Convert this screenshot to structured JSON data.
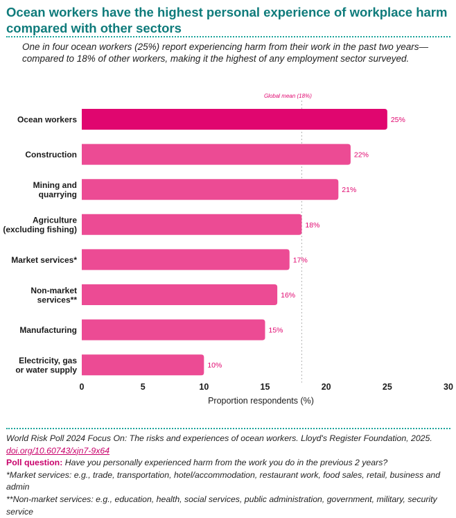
{
  "header": {
    "title": "Ocean workers have the highest personal experience of workplace harm compared with other sectors",
    "subtitle": "One in four ocean workers (25%) report experiencing harm from their work in the past two years—compared to 18% of other workers, making it the highest of any employment sector surveyed."
  },
  "chart_data": {
    "type": "bar",
    "orientation": "horizontal",
    "categories": [
      [
        "Ocean workers"
      ],
      [
        "Construction"
      ],
      [
        "Mining and",
        "quarrying"
      ],
      [
        "Agriculture",
        "(excluding fishing)"
      ],
      [
        "Market services*"
      ],
      [
        "Non-market",
        "services**"
      ],
      [
        "Manufacturing"
      ],
      [
        "Electricity, gas",
        "or water supply"
      ]
    ],
    "values": [
      25,
      22,
      21,
      18,
      17,
      16,
      15,
      10
    ],
    "value_labels": [
      "25%",
      "22%",
      "21%",
      "18%",
      "17%",
      "16%",
      "15%",
      "10%"
    ],
    "highlight_index": 0,
    "colors": {
      "highlight": "#e0066f",
      "bar": "#ec4b94",
      "label": "#e0066f",
      "mean_line": "#b0b0b0"
    },
    "xlabel": "Proportion respondents (%)",
    "xlim": [
      0,
      30
    ],
    "xticks": [
      0,
      5,
      10,
      15,
      20,
      25,
      30
    ],
    "reference_line": {
      "value": 18,
      "label": "Global mean (18%)"
    },
    "grid": false
  },
  "footer": {
    "source": "World Risk Poll 2024 Focus On: The risks and experiences of ocean workers. Lloyd's Register Foundation, 2025.",
    "doi": "doi.org/10.60743/xjn7-9x64",
    "poll_question_label": "Poll question:",
    "poll_question": "Have you personally experienced harm from the work you do in the previous 2 years?",
    "note_market": "*Market services: e.g., trade, transportation, hotel/accommodation, restaurant work, food sales, retail, business and admin",
    "note_nonmarket": "**Non-market services: e.g., education, health, social services, public administration, government, military, security service"
  }
}
